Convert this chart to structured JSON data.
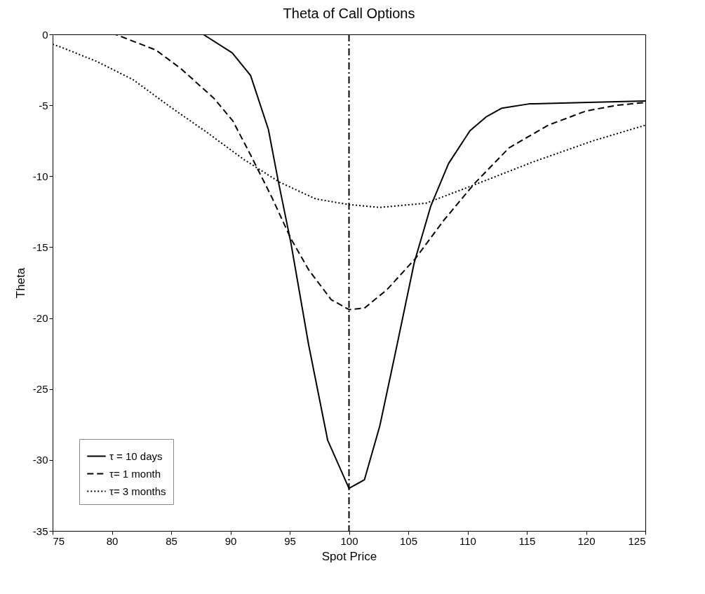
{
  "chart_data": {
    "type": "line",
    "title": "Theta of Call Options",
    "xlabel": "Spot Price",
    "ylabel": "Theta",
    "xlim": [
      75,
      125
    ],
    "xticks": [
      75,
      80,
      85,
      90,
      95,
      100,
      105,
      110,
      115,
      120,
      125
    ],
    "ylim": [
      -35,
      0
    ],
    "yticks": [
      -35,
      -30,
      -25,
      -20,
      -15,
      -10,
      -5,
      0
    ],
    "grid": false,
    "legend": "bottom left",
    "ref_lines": [
      {
        "axis": "x",
        "value": 100,
        "color": "#000000",
        "line_style": "dashed"
      }
    ],
    "series": [
      {
        "name": "τ = 10 days",
        "color": "#000000",
        "line_style": "solid",
        "x": [
          75,
          80,
          85,
          87.7,
          90.15,
          91.7,
          93.2,
          94,
          95.1,
          96.6,
          98.2,
          100,
          101.3,
          102.6,
          103.9,
          105.5,
          106.9,
          108.4,
          110.2,
          111.6,
          112.9,
          115.2,
          120.2,
          125
        ],
        "values": [
          0,
          0,
          0,
          0,
          -1.3,
          -2.9,
          -6.7,
          -10.2,
          -14.7,
          -21.9,
          -28.6,
          -32,
          -31.4,
          -27.6,
          -22.5,
          -16.1,
          -12.1,
          -9.1,
          -6.8,
          -5.8,
          -5.2,
          -4.9,
          -4.8,
          -4.7
        ]
      },
      {
        "name": "τ= 1 month",
        "color": "#000000",
        "line_style": "dashed",
        "x": [
          75,
          80.3,
          83.7,
          85.8,
          88.6,
          90.2,
          91.7,
          93.5,
          95.1,
          96.6,
          98.5,
          100,
          101.3,
          103.2,
          105.6,
          108,
          110.6,
          113.5,
          116.8,
          120,
          122.6,
          125
        ],
        "values": [
          0,
          0,
          -1.1,
          -2.4,
          -4.5,
          -6.1,
          -8.5,
          -11.5,
          -14.4,
          -16.6,
          -18.7,
          -19.4,
          -19.3,
          -18,
          -15.8,
          -13.1,
          -10.5,
          -8,
          -6.4,
          -5.4,
          -5,
          -4.8
        ]
      },
      {
        "name": "τ= 3 months",
        "color": "#000000",
        "line_style": "dotted",
        "x": [
          75,
          75.7,
          78.7,
          81.8,
          84.9,
          88,
          91.1,
          94.1,
          97.2,
          100,
          102.6,
          106.5,
          110.6,
          115.5,
          120.6,
          125
        ],
        "values": [
          -0.7,
          -0.9,
          -1.9,
          -3.2,
          -5.1,
          -6.9,
          -8.8,
          -10.4,
          -11.6,
          -12,
          -12.2,
          -11.9,
          -10.6,
          -9,
          -7.5,
          -6.4
        ]
      }
    ]
  }
}
